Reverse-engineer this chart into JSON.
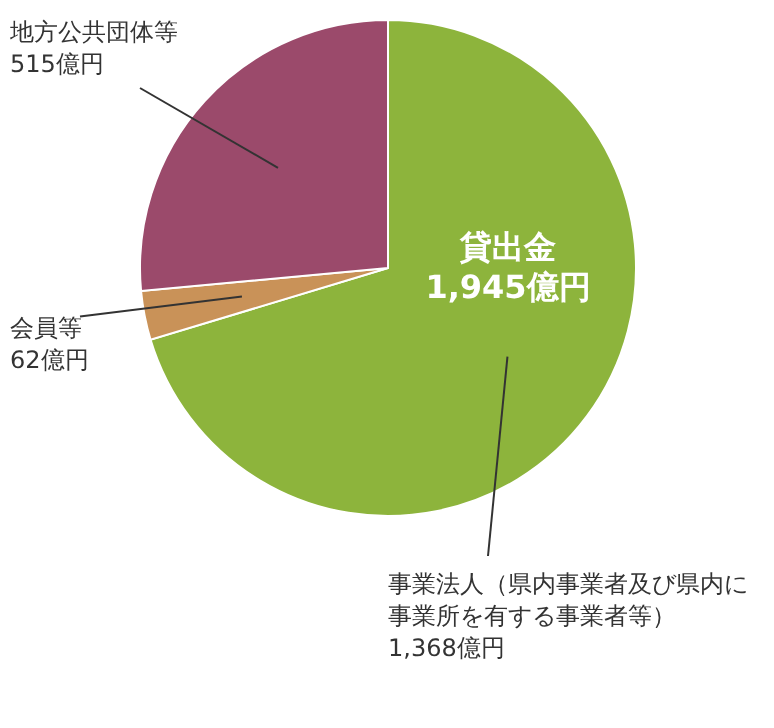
{
  "chart_data": {
    "type": "pie",
    "title": "貸出金",
    "subtitle": "1,945億円",
    "categories": [
      "事業法人（県内事業者及び県内に事業所を有する事業者等）",
      "会員等",
      "地方公共団体等"
    ],
    "values": [
      1368,
      62,
      515
    ],
    "value_labels": [
      "1,368億円",
      "62億円",
      "515億円"
    ],
    "colors": [
      "#8db43c",
      "#c99258",
      "#9b4a6b"
    ],
    "legend": false
  }
}
